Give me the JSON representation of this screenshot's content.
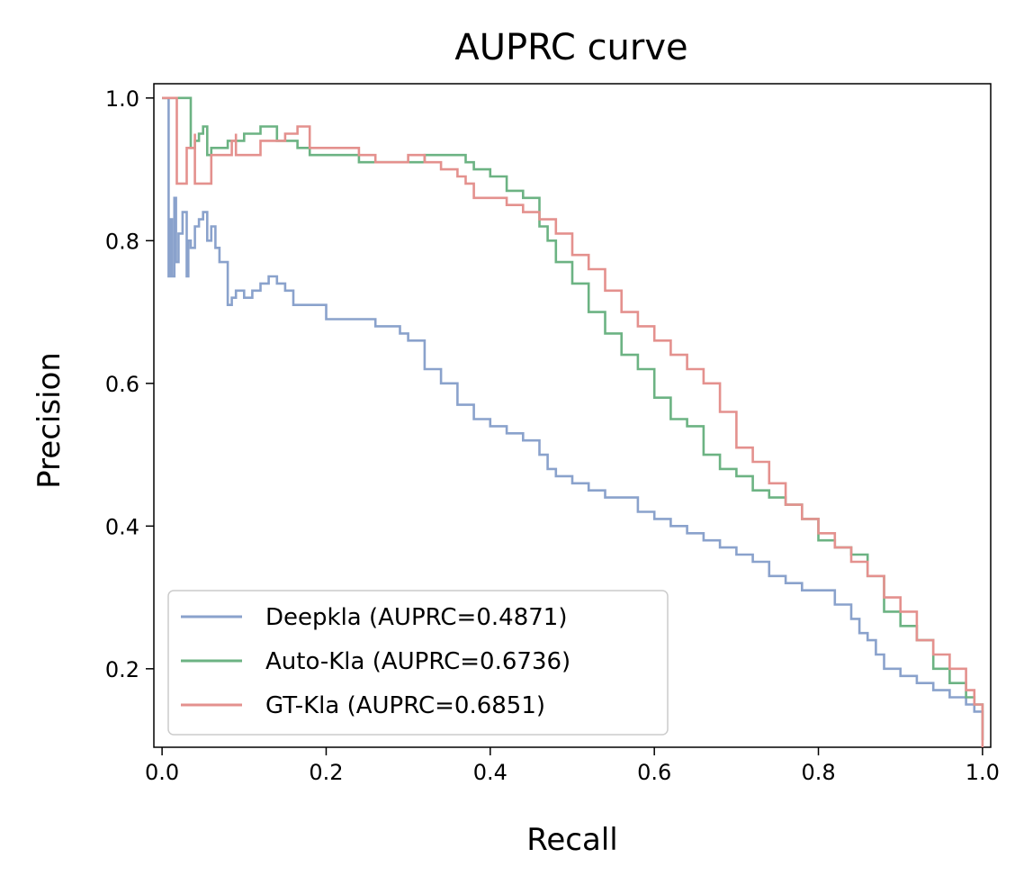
{
  "chart_data": {
    "type": "line",
    "title": "AUPRC curve",
    "xlabel": "Recall",
    "ylabel": "Precision",
    "xlim": [
      -0.01,
      1.01
    ],
    "ylim": [
      0.09,
      1.02
    ],
    "x_ticks": [
      0.0,
      0.2,
      0.4,
      0.6,
      0.8,
      1.0
    ],
    "x_tick_labels": [
      "0.0",
      "0.2",
      "0.4",
      "0.6",
      "0.8",
      "1.0"
    ],
    "y_ticks": [
      0.2,
      0.4,
      0.6,
      0.8,
      1.0
    ],
    "y_tick_labels": [
      "0.2",
      "0.4",
      "0.6",
      "0.8",
      "1.0"
    ],
    "grid": false,
    "legend_position": "lower-left",
    "series": [
      {
        "name": "Deepkla (AUPRC=0.4871)",
        "color": "#8aa2cc",
        "x": [
          0.0,
          0.008,
          0.008,
          0.01,
          0.012,
          0.015,
          0.017,
          0.02,
          0.025,
          0.03,
          0.032,
          0.035,
          0.04,
          0.045,
          0.05,
          0.055,
          0.06,
          0.065,
          0.07,
          0.08,
          0.085,
          0.09,
          0.1,
          0.11,
          0.12,
          0.13,
          0.14,
          0.15,
          0.16,
          0.18,
          0.2,
          0.22,
          0.24,
          0.26,
          0.28,
          0.29,
          0.3,
          0.32,
          0.34,
          0.36,
          0.38,
          0.4,
          0.42,
          0.44,
          0.46,
          0.47,
          0.48,
          0.5,
          0.52,
          0.54,
          0.56,
          0.58,
          0.6,
          0.62,
          0.64,
          0.66,
          0.68,
          0.7,
          0.72,
          0.74,
          0.76,
          0.78,
          0.8,
          0.82,
          0.84,
          0.85,
          0.86,
          0.87,
          0.88,
          0.9,
          0.92,
          0.94,
          0.96,
          0.98,
          0.99,
          1.0
        ],
        "y": [
          1.0,
          1.0,
          0.75,
          0.83,
          0.75,
          0.86,
          0.77,
          0.81,
          0.84,
          0.75,
          0.8,
          0.79,
          0.82,
          0.83,
          0.84,
          0.8,
          0.82,
          0.79,
          0.77,
          0.71,
          0.72,
          0.73,
          0.72,
          0.73,
          0.74,
          0.75,
          0.74,
          0.73,
          0.71,
          0.71,
          0.69,
          0.69,
          0.69,
          0.68,
          0.68,
          0.67,
          0.66,
          0.62,
          0.6,
          0.57,
          0.55,
          0.54,
          0.53,
          0.52,
          0.5,
          0.48,
          0.47,
          0.46,
          0.45,
          0.44,
          0.44,
          0.42,
          0.41,
          0.4,
          0.39,
          0.38,
          0.37,
          0.36,
          0.35,
          0.33,
          0.32,
          0.31,
          0.31,
          0.29,
          0.27,
          0.25,
          0.24,
          0.22,
          0.2,
          0.19,
          0.18,
          0.17,
          0.16,
          0.15,
          0.14,
          0.1
        ]
      },
      {
        "name": "Auto-Kla (AUPRC=0.6736)",
        "color": "#6cb383",
        "x": [
          0.0,
          0.035,
          0.035,
          0.04,
          0.045,
          0.05,
          0.055,
          0.06,
          0.08,
          0.1,
          0.12,
          0.135,
          0.14,
          0.16,
          0.165,
          0.17,
          0.18,
          0.2,
          0.22,
          0.24,
          0.26,
          0.28,
          0.3,
          0.32,
          0.34,
          0.36,
          0.37,
          0.38,
          0.4,
          0.42,
          0.44,
          0.46,
          0.47,
          0.48,
          0.5,
          0.52,
          0.54,
          0.56,
          0.58,
          0.6,
          0.62,
          0.64,
          0.66,
          0.68,
          0.7,
          0.72,
          0.74,
          0.76,
          0.78,
          0.8,
          0.82,
          0.84,
          0.86,
          0.88,
          0.9,
          0.92,
          0.94,
          0.96,
          0.98,
          0.99,
          1.0
        ],
        "y": [
          1.0,
          1.0,
          0.93,
          0.94,
          0.95,
          0.96,
          0.92,
          0.93,
          0.94,
          0.95,
          0.96,
          0.96,
          0.94,
          0.94,
          0.93,
          0.93,
          0.92,
          0.92,
          0.92,
          0.91,
          0.91,
          0.91,
          0.91,
          0.92,
          0.92,
          0.92,
          0.91,
          0.9,
          0.89,
          0.87,
          0.86,
          0.82,
          0.8,
          0.77,
          0.74,
          0.7,
          0.67,
          0.64,
          0.62,
          0.58,
          0.55,
          0.54,
          0.5,
          0.48,
          0.47,
          0.45,
          0.44,
          0.43,
          0.41,
          0.38,
          0.37,
          0.36,
          0.33,
          0.28,
          0.26,
          0.24,
          0.2,
          0.18,
          0.16,
          0.15,
          0.1
        ]
      },
      {
        "name": "GT-Kla (AUPRC=0.6851)",
        "color": "#e4918e",
        "x": [
          0.0,
          0.018,
          0.018,
          0.03,
          0.04,
          0.04,
          0.06,
          0.085,
          0.09,
          0.09,
          0.12,
          0.15,
          0.165,
          0.18,
          0.2,
          0.22,
          0.24,
          0.26,
          0.28,
          0.3,
          0.32,
          0.34,
          0.36,
          0.37,
          0.38,
          0.4,
          0.42,
          0.44,
          0.46,
          0.48,
          0.5,
          0.52,
          0.54,
          0.56,
          0.58,
          0.6,
          0.62,
          0.64,
          0.66,
          0.68,
          0.7,
          0.72,
          0.74,
          0.76,
          0.78,
          0.8,
          0.82,
          0.84,
          0.86,
          0.88,
          0.9,
          0.92,
          0.94,
          0.96,
          0.98,
          0.99,
          1.0
        ],
        "y": [
          1.0,
          1.0,
          0.88,
          0.93,
          0.95,
          0.88,
          0.92,
          0.94,
          0.95,
          0.92,
          0.94,
          0.95,
          0.96,
          0.93,
          0.93,
          0.93,
          0.92,
          0.91,
          0.91,
          0.92,
          0.91,
          0.9,
          0.89,
          0.88,
          0.86,
          0.86,
          0.85,
          0.84,
          0.83,
          0.81,
          0.78,
          0.76,
          0.73,
          0.7,
          0.68,
          0.66,
          0.64,
          0.62,
          0.6,
          0.56,
          0.51,
          0.49,
          0.46,
          0.43,
          0.41,
          0.39,
          0.37,
          0.35,
          0.33,
          0.3,
          0.28,
          0.24,
          0.22,
          0.2,
          0.17,
          0.15,
          0.09
        ]
      }
    ]
  }
}
